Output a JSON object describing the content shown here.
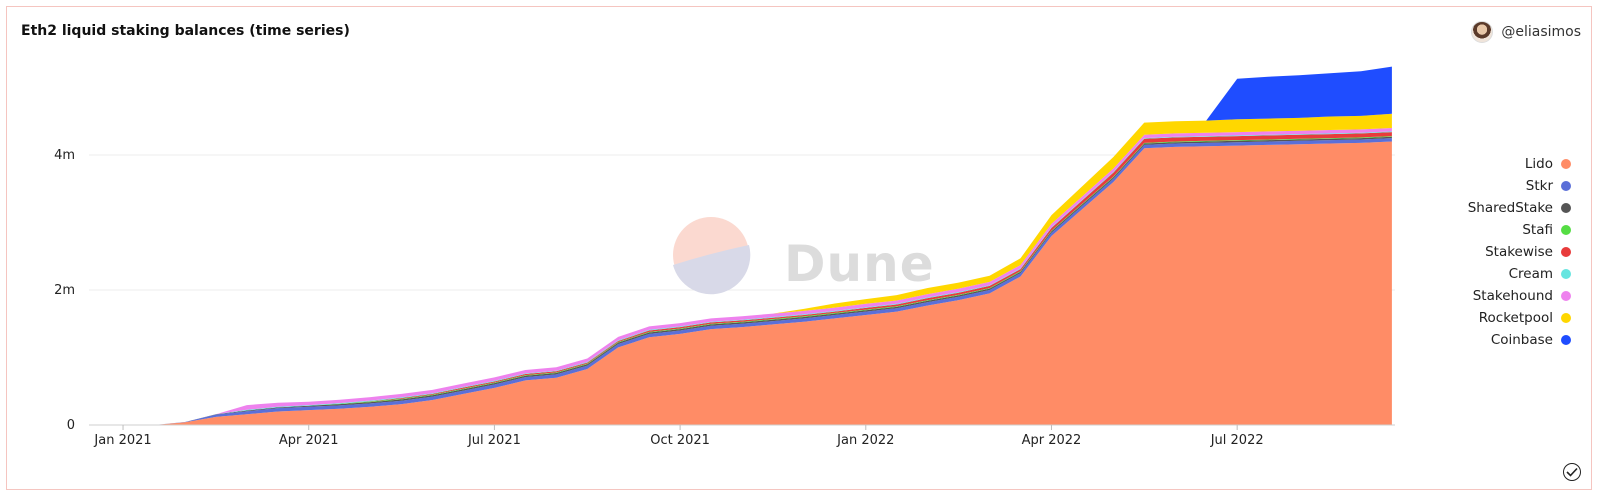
{
  "header": {
    "title": "Eth2 liquid staking balances (time series)",
    "author": "@eliasimos"
  },
  "watermark": {
    "text": "Dune"
  },
  "chart_data": {
    "type": "area",
    "stacked": true,
    "x_unit": "month index (0 = Jan 2021)",
    "x": [
      0,
      0.5,
      1,
      1.5,
      2,
      2.5,
      3,
      3.5,
      4,
      4.5,
      5,
      5.5,
      6,
      6.5,
      7,
      7.5,
      8,
      8.5,
      9,
      9.5,
      10,
      10.5,
      11,
      11.5,
      12,
      12.5,
      13,
      13.5,
      14,
      14.5,
      15,
      15.5,
      16,
      16.5,
      17,
      17.5,
      18,
      18.5,
      19,
      19.5,
      20,
      20.5
    ],
    "x_ticks": [
      {
        "x": 0,
        "label": "Jan 2021"
      },
      {
        "x": 3,
        "label": "Apr 2021"
      },
      {
        "x": 6,
        "label": "Jul 2021"
      },
      {
        "x": 9,
        "label": "Oct 2021"
      },
      {
        "x": 12,
        "label": "Jan 2022"
      },
      {
        "x": 15,
        "label": "Apr 2022"
      },
      {
        "x": 18,
        "label": "Jul 2022"
      }
    ],
    "xlim": [
      -0.55,
      20.55
    ],
    "y_ticks": [
      {
        "y": 0,
        "label": "0"
      },
      {
        "y": 2000000,
        "label": "2m"
      },
      {
        "y": 4000000,
        "label": "4m"
      }
    ],
    "ylim": [
      0,
      5600000
    ],
    "legend_position": "right",
    "grid": true,
    "series": [
      {
        "name": "Lido",
        "color": "#ff8c66",
        "values": [
          0,
          0,
          40000,
          120000,
          160000,
          200000,
          220000,
          240000,
          270000,
          310000,
          370000,
          460000,
          550000,
          660000,
          700000,
          830000,
          1150000,
          1300000,
          1350000,
          1420000,
          1450000,
          1490000,
          1530000,
          1580000,
          1630000,
          1680000,
          1770000,
          1850000,
          1950000,
          2200000,
          2800000,
          3200000,
          3600000,
          4100000,
          4120000,
          4130000,
          4140000,
          4150000,
          4160000,
          4170000,
          4180000,
          4200000
        ]
      },
      {
        "name": "Stkr",
        "color": "#5b6fd8",
        "values": [
          0,
          0,
          5000,
          35000,
          45000,
          50000,
          50000,
          50000,
          50000,
          50000,
          50000,
          50000,
          50000,
          50000,
          50000,
          50000,
          50000,
          50000,
          50000,
          50000,
          50000,
          50000,
          50000,
          50000,
          50000,
          50000,
          50000,
          50000,
          50000,
          50000,
          50000,
          50000,
          50000,
          50000,
          50000,
          50000,
          50000,
          50000,
          50000,
          50000,
          50000,
          50000
        ]
      },
      {
        "name": "SharedStake",
        "color": "#555555",
        "values": [
          0,
          0,
          0,
          5000,
          10000,
          10000,
          15000,
          20000,
          20000,
          20000,
          20000,
          20000,
          20000,
          20000,
          20000,
          20000,
          20000,
          20000,
          20000,
          20000,
          20000,
          20000,
          20000,
          20000,
          20000,
          20000,
          20000,
          20000,
          20000,
          20000,
          20000,
          20000,
          20000,
          20000,
          20000,
          20000,
          20000,
          20000,
          20000,
          20000,
          20000,
          20000
        ]
      },
      {
        "name": "Stafi",
        "color": "#55dd44",
        "values": [
          0,
          0,
          0,
          0,
          0,
          0,
          0,
          5000,
          8000,
          10000,
          10000,
          10000,
          10000,
          10000,
          10000,
          10000,
          10000,
          10000,
          10000,
          10000,
          10000,
          10000,
          10000,
          10000,
          10000,
          10000,
          10000,
          10000,
          10000,
          10000,
          10000,
          10000,
          10000,
          10000,
          10000,
          10000,
          10000,
          10000,
          10000,
          10000,
          10000,
          10000
        ]
      },
      {
        "name": "Stakewise",
        "color": "#e83b3b",
        "values": [
          0,
          0,
          0,
          0,
          0,
          0,
          0,
          0,
          5000,
          10000,
          10000,
          15000,
          15000,
          15000,
          15000,
          15000,
          15000,
          20000,
          20000,
          20000,
          20000,
          20000,
          20000,
          20000,
          25000,
          25000,
          30000,
          30000,
          30000,
          30000,
          40000,
          50000,
          60000,
          60000,
          60000,
          60000,
          60000,
          60000,
          60000,
          60000,
          60000,
          60000
        ]
      },
      {
        "name": "Cream",
        "color": "#66e5e0",
        "values": [
          0,
          0,
          0,
          0,
          10000,
          10000,
          10000,
          10000,
          10000,
          10000,
          10000,
          10000,
          10000,
          10000,
          10000,
          10000,
          10000,
          10000,
          10000,
          10000,
          10000,
          10000,
          10000,
          10000,
          10000,
          10000,
          10000,
          10000,
          10000,
          10000,
          10000,
          10000,
          10000,
          10000,
          10000,
          10000,
          10000,
          10000,
          10000,
          10000,
          10000,
          10000
        ]
      },
      {
        "name": "Stakehound",
        "color": "#ee82ee",
        "values": [
          0,
          0,
          0,
          0,
          70000,
          60000,
          50000,
          50000,
          50000,
          50000,
          50000,
          50000,
          50000,
          50000,
          50000,
          50000,
          50000,
          50000,
          50000,
          50000,
          50000,
          50000,
          50000,
          50000,
          50000,
          50000,
          50000,
          50000,
          50000,
          50000,
          50000,
          50000,
          50000,
          50000,
          50000,
          50000,
          50000,
          50000,
          50000,
          50000,
          50000,
          50000
        ]
      },
      {
        "name": "Rocketpool",
        "color": "#ffd700",
        "values": [
          0,
          0,
          0,
          0,
          0,
          0,
          0,
          0,
          0,
          0,
          0,
          0,
          0,
          0,
          0,
          0,
          0,
          0,
          0,
          0,
          0,
          0,
          30000,
          60000,
          70000,
          80000,
          90000,
          90000,
          90000,
          100000,
          130000,
          150000,
          170000,
          180000,
          180000,
          180000,
          190000,
          190000,
          190000,
          200000,
          200000,
          210000
        ]
      },
      {
        "name": "Coinbase",
        "color": "#1f4dff",
        "values": [
          0,
          0,
          0,
          0,
          0,
          0,
          0,
          0,
          0,
          0,
          0,
          0,
          0,
          0,
          0,
          0,
          0,
          0,
          0,
          0,
          0,
          0,
          0,
          0,
          0,
          0,
          0,
          0,
          0,
          0,
          0,
          0,
          0,
          0,
          0,
          0,
          600000,
          620000,
          630000,
          640000,
          660000,
          700000
        ]
      }
    ]
  }
}
